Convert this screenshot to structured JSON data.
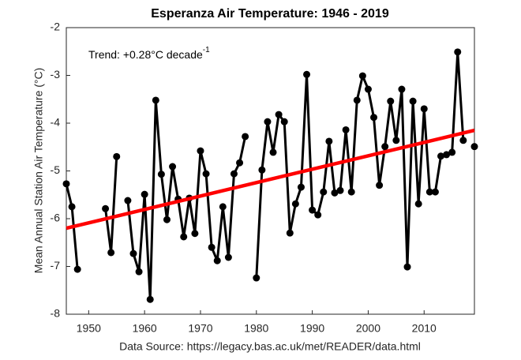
{
  "chart_data": {
    "type": "line",
    "title": "Esperanza Air Temperature: 1946 - 2019",
    "ylabel": "Mean Annual Station Air Temperature (°C)",
    "source": "Data Source: https://legacy.bas.ac.uk/met/READER/data.html",
    "annotation": {
      "text": "Trend: +0.28°C decade",
      "superscript": "-1"
    },
    "xlim": [
      1946,
      2019
    ],
    "xticks": [
      1950,
      1960,
      1970,
      1980,
      1990,
      2000,
      2010
    ],
    "ylim": [
      -8,
      -2
    ],
    "yticks": [
      -8,
      -7,
      -6,
      -5,
      -4,
      -3,
      -2
    ],
    "grid": false,
    "series": [
      {
        "color": "#000000",
        "markers": true,
        "x": [
          1946,
          1947,
          1948,
          1949,
          1950,
          1951,
          1952,
          1953,
          1954,
          1955,
          1956,
          1957,
          1958,
          1959,
          1960,
          1961,
          1962,
          1963,
          1964,
          1965,
          1966,
          1967,
          1968,
          1969,
          1970,
          1971,
          1972,
          1973,
          1974,
          1975,
          1976,
          1977,
          1978,
          1979,
          1980,
          1981,
          1982,
          1983,
          1984,
          1985,
          1986,
          1987,
          1988,
          1989,
          1990,
          1991,
          1992,
          1993,
          1994,
          1995,
          1996,
          1997,
          1998,
          1999,
          2000,
          2001,
          2002,
          2003,
          2004,
          2005,
          2006,
          2007,
          2008,
          2009,
          2010,
          2011,
          2012,
          2013,
          2014,
          2015,
          2016,
          2017,
          2018,
          2019
        ],
        "values": [
          -5.27,
          -5.75,
          -7.06,
          null,
          null,
          null,
          null,
          -5.79,
          -6.71,
          -4.7,
          null,
          -5.62,
          -6.73,
          -7.11,
          -5.49,
          -7.69,
          -3.52,
          -5.07,
          -6.02,
          -4.91,
          -5.59,
          -6.38,
          -5.57,
          -6.31,
          -4.58,
          -5.06,
          -6.6,
          -6.88,
          -5.75,
          -6.81,
          -5.06,
          -4.83,
          -4.28,
          null,
          -7.24,
          -4.98,
          -3.97,
          -4.61,
          -3.82,
          -3.97,
          -6.3,
          -5.69,
          -5.34,
          -2.98,
          -5.82,
          -5.92,
          -5.44,
          -4.38,
          -5.46,
          -5.41,
          -4.14,
          -5.44,
          -3.52,
          -3.01,
          -3.29,
          -3.88,
          -5.3,
          -4.49,
          -3.54,
          -4.36,
          -3.29,
          -7.01,
          -3.54,
          -5.69,
          -3.7,
          -5.44,
          -5.44,
          -4.69,
          -4.66,
          -4.61,
          -2.51,
          -4.36,
          null,
          -4.49
        ]
      },
      {
        "color": "#ff0000",
        "markers": false,
        "x": [
          1946,
          2019
        ],
        "values": [
          -6.2,
          -4.15
        ]
      }
    ]
  }
}
